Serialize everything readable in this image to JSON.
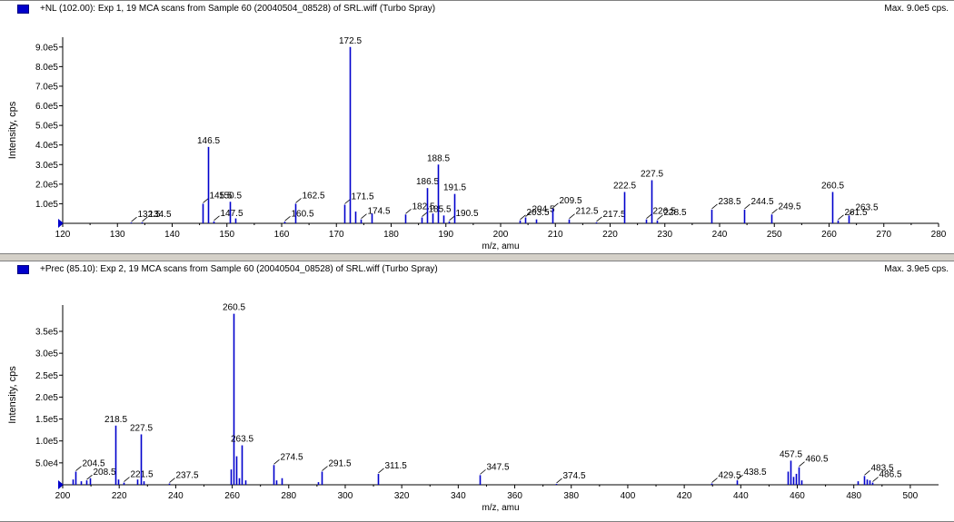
{
  "chart_data": [
    {
      "type": "bar",
      "title": "+NL (102.00): Exp 1, 19 MCA scans from Sample 60 (20040504_08528) of SRL.wiff (Turbo Spray)",
      "max_label": "Max. 9.0e5 cps.",
      "xlabel": "m/z, amu",
      "ylabel": "Intensity, cps",
      "xlim": [
        120,
        280
      ],
      "ylim": [
        0,
        950000
      ],
      "xticks": [
        120,
        130,
        140,
        150,
        160,
        170,
        180,
        190,
        200,
        210,
        220,
        230,
        240,
        250,
        260,
        270,
        280
      ],
      "yticks": [
        100000,
        200000,
        300000,
        400000,
        500000,
        600000,
        700000,
        800000,
        900000
      ],
      "ytick_labels": [
        "1.0e5",
        "2.0e5",
        "3.0e5",
        "4.0e5",
        "5.0e5",
        "6.0e5",
        "7.0e5",
        "8.0e5",
        "9.0e5"
      ],
      "peaks": [
        {
          "x": 132.5,
          "y": 4000,
          "label": "132.5"
        },
        {
          "x": 134.5,
          "y": 5000,
          "label": "134.5"
        },
        {
          "x": 145.5,
          "y": 100000,
          "label": "145.5"
        },
        {
          "x": 146.5,
          "y": 390000,
          "label": "146.5"
        },
        {
          "x": 147.5,
          "y": 10000,
          "label": "147.5"
        },
        {
          "x": 150.5,
          "y": 110000,
          "label": "150.5"
        },
        {
          "x": 151.5,
          "y": 25000
        },
        {
          "x": 160.5,
          "y": 8000,
          "label": "160.5"
        },
        {
          "x": 162.5,
          "y": 100000,
          "label": "162.5"
        },
        {
          "x": 171.5,
          "y": 95000,
          "label": "171.5"
        },
        {
          "x": 172.5,
          "y": 900000,
          "label": "172.5"
        },
        {
          "x": 173.5,
          "y": 60000
        },
        {
          "x": 174.5,
          "y": 20000,
          "label": "174.5"
        },
        {
          "x": 176.5,
          "y": 50000
        },
        {
          "x": 182.5,
          "y": 45000,
          "label": "182.5"
        },
        {
          "x": 185.5,
          "y": 30000,
          "label": "185.5"
        },
        {
          "x": 186.5,
          "y": 180000,
          "label": "186.5"
        },
        {
          "x": 187.5,
          "y": 50000
        },
        {
          "x": 188.5,
          "y": 300000,
          "label": "188.5"
        },
        {
          "x": 189.5,
          "y": 40000
        },
        {
          "x": 190.5,
          "y": 10000,
          "label": "190.5"
        },
        {
          "x": 191.5,
          "y": 150000,
          "label": "191.5"
        },
        {
          "x": 203.5,
          "y": 15000,
          "label": "203.5"
        },
        {
          "x": 204.5,
          "y": 30000,
          "label": "204.5"
        },
        {
          "x": 206.5,
          "y": 20000
        },
        {
          "x": 209.5,
          "y": 75000,
          "label": "209.5"
        },
        {
          "x": 212.5,
          "y": 20000,
          "label": "212.5"
        },
        {
          "x": 217.5,
          "y": 5000,
          "label": "217.5"
        },
        {
          "x": 222.5,
          "y": 160000,
          "label": "222.5"
        },
        {
          "x": 226.5,
          "y": 20000,
          "label": "226.5"
        },
        {
          "x": 227.5,
          "y": 220000,
          "label": "227.5"
        },
        {
          "x": 228.5,
          "y": 15000,
          "label": "228.5"
        },
        {
          "x": 238.5,
          "y": 70000,
          "label": "238.5"
        },
        {
          "x": 244.5,
          "y": 70000,
          "label": "244.5"
        },
        {
          "x": 249.5,
          "y": 45000,
          "label": "249.5"
        },
        {
          "x": 260.5,
          "y": 160000,
          "label": "260.5"
        },
        {
          "x": 261.5,
          "y": 15000,
          "label": "261.5"
        },
        {
          "x": 263.5,
          "y": 40000,
          "label": "263.5"
        }
      ]
    },
    {
      "type": "bar",
      "title": "+Prec (85.10): Exp 2, 19 MCA scans from Sample 60 (20040504_08528) of SRL.wiff (Turbo Spray)",
      "max_label": "Max. 3.9e5 cps.",
      "xlabel": "m/z, amu",
      "ylabel": "Intensity, cps",
      "xlim": [
        200,
        510
      ],
      "ylim": [
        0,
        410000
      ],
      "xticks": [
        200,
        220,
        240,
        260,
        280,
        300,
        320,
        340,
        360,
        380,
        400,
        420,
        440,
        460,
        480,
        500
      ],
      "yticks": [
        50000,
        100000,
        150000,
        200000,
        250000,
        300000,
        350000
      ],
      "ytick_labels": [
        "5.0e4",
        "1.0e5",
        "1.5e5",
        "2.0e5",
        "2.5e5",
        "3.0e5",
        "3.5e5"
      ],
      "peaks": [
        {
          "x": 203.5,
          "y": 12000
        },
        {
          "x": 204.5,
          "y": 30000,
          "label": "204.5"
        },
        {
          "x": 206.5,
          "y": 8000
        },
        {
          "x": 208.5,
          "y": 10000,
          "label": "208.5"
        },
        {
          "x": 209.5,
          "y": 15000
        },
        {
          "x": 218.5,
          "y": 135000,
          "label": "218.5"
        },
        {
          "x": 219.5,
          "y": 12000
        },
        {
          "x": 221.5,
          "y": 5000,
          "label": "221.5"
        },
        {
          "x": 226.5,
          "y": 12000
        },
        {
          "x": 227.5,
          "y": 115000,
          "label": "227.5"
        },
        {
          "x": 228.5,
          "y": 8000
        },
        {
          "x": 237.5,
          "y": 3000,
          "label": "237.5"
        },
        {
          "x": 259.5,
          "y": 35000
        },
        {
          "x": 260.5,
          "y": 390000,
          "label": "260.5"
        },
        {
          "x": 261.5,
          "y": 65000
        },
        {
          "x": 262.5,
          "y": 15000
        },
        {
          "x": 263.5,
          "y": 90000,
          "label": "263.5"
        },
        {
          "x": 264.5,
          "y": 10000
        },
        {
          "x": 274.5,
          "y": 45000,
          "label": "274.5"
        },
        {
          "x": 275.5,
          "y": 10000
        },
        {
          "x": 277.5,
          "y": 15000
        },
        {
          "x": 290.5,
          "y": 6000
        },
        {
          "x": 291.5,
          "y": 30000,
          "label": "291.5"
        },
        {
          "x": 311.5,
          "y": 25000,
          "label": "311.5"
        },
        {
          "x": 347.5,
          "y": 22000,
          "label": "347.5"
        },
        {
          "x": 374.5,
          "y": 2000,
          "label": "374.5"
        },
        {
          "x": 429.5,
          "y": 3000,
          "label": "429.5"
        },
        {
          "x": 438.5,
          "y": 10000,
          "label": "438.5"
        },
        {
          "x": 456.5,
          "y": 30000
        },
        {
          "x": 457.5,
          "y": 55000,
          "label": "457.5"
        },
        {
          "x": 458.5,
          "y": 18000
        },
        {
          "x": 459.5,
          "y": 25000
        },
        {
          "x": 460.5,
          "y": 40000,
          "label": "460.5"
        },
        {
          "x": 461.5,
          "y": 10000
        },
        {
          "x": 481.5,
          "y": 8000
        },
        {
          "x": 483.5,
          "y": 20000,
          "label": "483.5"
        },
        {
          "x": 484.5,
          "y": 12000
        },
        {
          "x": 485.5,
          "y": 10000
        },
        {
          "x": 486.5,
          "y": 5000,
          "label": "486.5"
        }
      ]
    }
  ],
  "colors": {
    "peak": "#0000cc",
    "axis": "#000000",
    "marker": "#0000cc"
  }
}
